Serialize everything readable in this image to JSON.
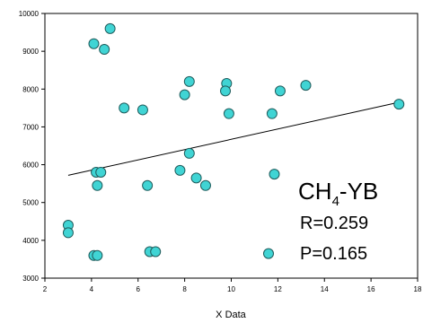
{
  "chart_data": {
    "type": "scatter",
    "xlabel": "X Data",
    "ylabel": "",
    "xlim": [
      2,
      18
    ],
    "ylim": [
      3000,
      10000
    ],
    "x_ticks": [
      "2",
      "4",
      "6",
      "8",
      "10",
      "12",
      "14",
      "16",
      "18"
    ],
    "y_ticks": [
      "3000",
      "4000",
      "5000",
      "6000",
      "7000",
      "8000",
      "9000",
      "10000"
    ],
    "grid": false,
    "marker_color": "#40d4d4",
    "marker_edge_color": "#1f5c5c",
    "line_color": "#000000",
    "points": [
      {
        "x": 3.0,
        "y": 4400
      },
      {
        "x": 3.0,
        "y": 4200
      },
      {
        "x": 4.1,
        "y": 3600
      },
      {
        "x": 4.25,
        "y": 3600
      },
      {
        "x": 4.1,
        "y": 9200
      },
      {
        "x": 4.55,
        "y": 9050
      },
      {
        "x": 4.8,
        "y": 9600
      },
      {
        "x": 4.2,
        "y": 5800
      },
      {
        "x": 4.4,
        "y": 5800
      },
      {
        "x": 4.25,
        "y": 5450
      },
      {
        "x": 5.4,
        "y": 7500
      },
      {
        "x": 6.2,
        "y": 7450
      },
      {
        "x": 6.4,
        "y": 5450
      },
      {
        "x": 6.5,
        "y": 3700
      },
      {
        "x": 6.75,
        "y": 3700
      },
      {
        "x": 7.8,
        "y": 5850
      },
      {
        "x": 8.2,
        "y": 6300
      },
      {
        "x": 8.5,
        "y": 5650
      },
      {
        "x": 8.9,
        "y": 5450
      },
      {
        "x": 8.0,
        "y": 7850
      },
      {
        "x": 8.2,
        "y": 8200
      },
      {
        "x": 9.8,
        "y": 8150
      },
      {
        "x": 9.75,
        "y": 7950
      },
      {
        "x": 9.9,
        "y": 7350
      },
      {
        "x": 11.75,
        "y": 7350
      },
      {
        "x": 12.1,
        "y": 7950
      },
      {
        "x": 11.85,
        "y": 5750
      },
      {
        "x": 11.6,
        "y": 3650
      },
      {
        "x": 13.2,
        "y": 8100
      },
      {
        "x": 17.2,
        "y": 7600
      }
    ],
    "regression": {
      "x": [
        3.0,
        17.2
      ],
      "y": [
        5720,
        7650
      ]
    },
    "annotation": {
      "formula_main": "CH",
      "formula_sub": "4",
      "formula_rest": "-YB",
      "r_text": "R=0.259",
      "p_text": "P=0.165"
    }
  }
}
